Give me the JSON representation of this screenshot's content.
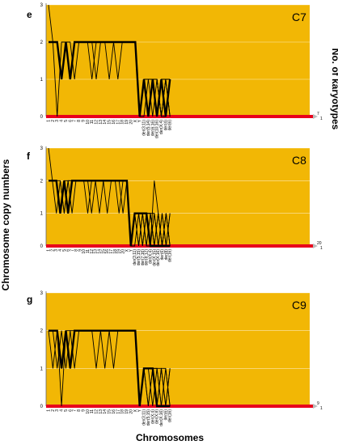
{
  "figure": {
    "ylabel": "Chromosome copy numbers",
    "right_label": "No. of karyotypes",
    "xlabel": "Chromosomes",
    "colors": {
      "plot_bg": "#f2b705",
      "profile": "#000000",
      "zero_band": "#e8001c",
      "grid": "#ffffff"
    }
  },
  "chart_data": [
    {
      "type": "line",
      "panel": "e",
      "title": "C7",
      "ylim": [
        0,
        3
      ],
      "yticks": [
        "0",
        "1",
        "2",
        "3"
      ],
      "karyotype_ticks": [
        "7",
        "1"
      ],
      "categories": [
        "1",
        "2",
        "3",
        "4",
        "5",
        "6",
        "7",
        "8",
        "9",
        "10",
        "11",
        "12",
        "13",
        "14",
        "15",
        "16",
        "17",
        "18",
        "19",
        "20",
        "X",
        "Y",
        "der(3;11)",
        "der(5;14)",
        "der(6;16)",
        "der(10;16)",
        "der(X;4)",
        "der(4)",
        "der(6)"
      ],
      "series": [
        {
          "values": [
            2,
            2,
            0,
            2,
            2,
            1,
            2,
            2,
            2,
            2,
            1,
            2,
            2,
            2,
            2,
            2,
            2,
            2,
            2,
            2,
            2,
            0,
            1,
            1,
            1,
            0,
            1,
            0,
            1
          ]
        },
        {
          "values": [
            2,
            2,
            2,
            1,
            2,
            1,
            2,
            2,
            2,
            2,
            2,
            2,
            2,
            2,
            2,
            2,
            2,
            2,
            2,
            2,
            2,
            0,
            1,
            0,
            1,
            1,
            0,
            1,
            0
          ]
        },
        {
          "values": [
            2,
            2,
            2,
            1,
            2,
            2,
            1,
            2,
            2,
            2,
            2,
            2,
            2,
            2,
            1,
            2,
            2,
            2,
            2,
            2,
            2,
            0,
            0,
            1,
            1,
            0,
            1,
            1,
            0
          ]
        },
        {
          "values": [
            2,
            2,
            2,
            1,
            2,
            1,
            2,
            2,
            2,
            2,
            2,
            1,
            2,
            2,
            2,
            2,
            2,
            2,
            2,
            2,
            2,
            0,
            1,
            1,
            0,
            1,
            0,
            1,
            1
          ]
        },
        {
          "values": [
            3,
            2,
            2,
            1,
            2,
            1,
            2,
            2,
            2,
            2,
            2,
            2,
            2,
            2,
            2,
            2,
            1,
            2,
            2,
            2,
            2,
            0,
            1,
            1,
            1,
            1,
            0,
            0,
            1
          ]
        },
        {
          "values": [
            2,
            2,
            2,
            1,
            2,
            1,
            2,
            2,
            2,
            2,
            2,
            2,
            2,
            2,
            2,
            2,
            2,
            2,
            2,
            2,
            2,
            0,
            1,
            1,
            1,
            1,
            0,
            1,
            0
          ]
        },
        {
          "values": [
            2,
            2,
            2,
            1,
            2,
            1,
            2,
            2,
            2,
            2,
            2,
            2,
            2,
            2,
            2,
            2,
            2,
            2,
            2,
            2,
            2,
            0,
            1,
            0,
            1,
            0,
            1,
            0,
            1
          ]
        }
      ]
    },
    {
      "type": "line",
      "panel": "f",
      "title": "C8",
      "ylim": [
        0,
        3
      ],
      "yticks": [
        "0",
        "1",
        "2",
        "3"
      ],
      "karyotype_ticks": [
        "20",
        "1"
      ],
      "categories": [
        "1",
        "2",
        "3",
        "4",
        "5",
        "6",
        "7",
        "8",
        "9",
        "10",
        "11",
        "12",
        "13",
        "14",
        "15",
        "16",
        "17",
        "18",
        "19",
        "20",
        "X",
        "Y",
        "der(3;11)",
        "der(5;15)",
        "der(7;16)",
        "der(8;12)",
        "der(X;4)",
        "der(X;15)",
        "der(X;16)",
        "der(6)",
        "der(8)",
        "der(16)"
      ],
      "series": [
        {
          "values": [
            3,
            2,
            2,
            1,
            2,
            1,
            2,
            2,
            2,
            2,
            2,
            1,
            2,
            2,
            2,
            2,
            2,
            2,
            2,
            1,
            2,
            0,
            1,
            1,
            1,
            1,
            0,
            0,
            1,
            0,
            1,
            0
          ]
        },
        {
          "values": [
            2,
            2,
            1,
            2,
            1,
            2,
            2,
            2,
            2,
            2,
            2,
            2,
            2,
            2,
            2,
            2,
            2,
            2,
            1,
            2,
            2,
            0,
            1,
            1,
            0,
            1,
            1,
            0,
            0,
            1,
            0,
            0
          ]
        },
        {
          "values": [
            2,
            2,
            2,
            1,
            2,
            1,
            2,
            2,
            2,
            2,
            2,
            2,
            2,
            2,
            2,
            1,
            2,
            2,
            2,
            2,
            2,
            0,
            0,
            1,
            1,
            0,
            1,
            1,
            0,
            0,
            1,
            0
          ]
        },
        {
          "values": [
            2,
            2,
            2,
            2,
            1,
            2,
            2,
            2,
            2,
            2,
            2,
            2,
            2,
            2,
            2,
            2,
            2,
            2,
            2,
            2,
            2,
            0,
            1,
            0,
            1,
            1,
            0,
            2,
            1,
            0,
            0,
            1
          ]
        },
        {
          "values": [
            2,
            2,
            2,
            1,
            2,
            1,
            2,
            2,
            2,
            2,
            1,
            2,
            2,
            2,
            2,
            2,
            2,
            2,
            2,
            2,
            2,
            0,
            1,
            1,
            0,
            1,
            1,
            0,
            1,
            0,
            0,
            0
          ]
        },
        {
          "values": [
            2,
            2,
            2,
            1,
            2,
            2,
            1,
            2,
            2,
            2,
            2,
            2,
            2,
            2,
            2,
            2,
            2,
            2,
            2,
            2,
            2,
            0,
            1,
            1,
            1,
            0,
            0,
            1,
            0,
            1,
            0,
            0
          ]
        },
        {
          "values": [
            2,
            2,
            2,
            1,
            2,
            1,
            2,
            2,
            2,
            2,
            2,
            2,
            2,
            1,
            2,
            2,
            2,
            2,
            2,
            2,
            2,
            0,
            1,
            0,
            1,
            1,
            1,
            0,
            0,
            0,
            1,
            0
          ]
        },
        {
          "values": [
            2,
            2,
            2,
            1,
            2,
            1,
            2,
            2,
            2,
            2,
            2,
            2,
            2,
            2,
            2,
            2,
            2,
            2,
            2,
            2,
            2,
            0,
            1,
            1,
            1,
            1,
            0,
            0,
            0,
            0,
            0,
            1
          ]
        },
        {
          "values": [
            2,
            2,
            2,
            1,
            2,
            1,
            2,
            2,
            2,
            2,
            2,
            2,
            2,
            2,
            2,
            2,
            2,
            2,
            2,
            2,
            2,
            0,
            1,
            1,
            1,
            1,
            0,
            0,
            0,
            0,
            0,
            0
          ]
        }
      ]
    },
    {
      "type": "line",
      "panel": "g",
      "title": "C9",
      "ylim": [
        0,
        3
      ],
      "yticks": [
        "0",
        "1",
        "2",
        "3"
      ],
      "karyotype_ticks": [
        "9",
        "1"
      ],
      "categories": [
        "1",
        "2",
        "3",
        "4",
        "5",
        "6",
        "7",
        "8",
        "9",
        "10",
        "11",
        "12",
        "13",
        "14",
        "15",
        "16",
        "17",
        "18",
        "19",
        "20",
        "X",
        "Y",
        "der(3;11)",
        "der(5;15)",
        "der(X;4)",
        "der(X;8)",
        "der(X;16)",
        "der(6)",
        "der(16)"
      ],
      "series": [
        {
          "values": [
            2,
            2,
            1,
            2,
            1,
            2,
            2,
            2,
            2,
            2,
            2,
            2,
            2,
            2,
            2,
            2,
            2,
            2,
            2,
            2,
            2,
            0,
            1,
            1,
            1,
            0,
            1,
            0,
            1
          ]
        },
        {
          "values": [
            2,
            1,
            2,
            1,
            2,
            2,
            1,
            2,
            2,
            2,
            2,
            1,
            2,
            2,
            2,
            2,
            2,
            2,
            2,
            2,
            2,
            0,
            1,
            0,
            1,
            1,
            0,
            1,
            0
          ]
        },
        {
          "values": [
            2,
            2,
            2,
            0,
            2,
            1,
            2,
            2,
            2,
            2,
            2,
            2,
            2,
            1,
            2,
            2,
            2,
            2,
            2,
            2,
            2,
            0,
            1,
            1,
            0,
            1,
            1,
            0,
            1
          ]
        },
        {
          "values": [
            2,
            2,
            2,
            1,
            2,
            1,
            2,
            2,
            2,
            2,
            2,
            2,
            2,
            2,
            2,
            1,
            2,
            2,
            2,
            2,
            2,
            0,
            1,
            0,
            1,
            0,
            1,
            1,
            0
          ]
        },
        {
          "values": [
            2,
            2,
            2,
            1,
            2,
            1,
            2,
            2,
            2,
            2,
            2,
            2,
            2,
            2,
            2,
            2,
            2,
            2,
            2,
            2,
            2,
            0,
            1,
            1,
            1,
            1,
            0,
            0,
            0
          ]
        },
        {
          "values": [
            2,
            2,
            2,
            1,
            2,
            1,
            2,
            2,
            2,
            2,
            2,
            2,
            2,
            2,
            2,
            2,
            2,
            2,
            2,
            2,
            2,
            0,
            1,
            1,
            1,
            0,
            0,
            0,
            0
          ]
        }
      ]
    }
  ]
}
